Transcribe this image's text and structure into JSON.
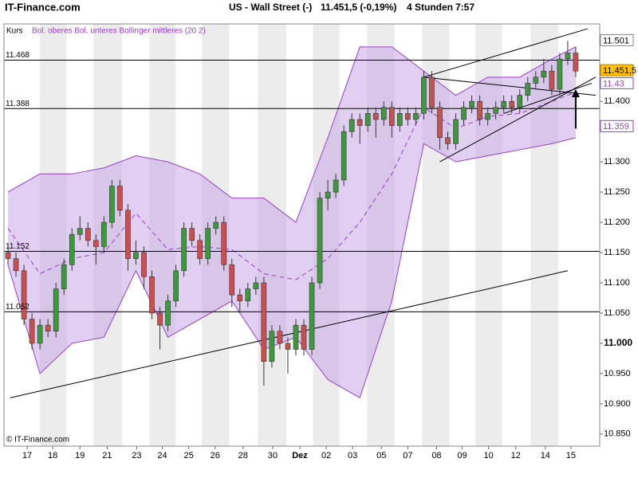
{
  "chart_data": {
    "type": "candlestick",
    "header": {
      "site": "IT-Finance.com",
      "instrument": "US - Wall Street (-)",
      "quote": "11.451,5 (-0,19%)",
      "interval": "4 Stunden",
      "time": "7:57"
    },
    "footer": "© IT-Finance.com",
    "legend": [
      "Kurs",
      "Bol. oberes Bol. unteres Bollinger mittleres (20 2)"
    ],
    "colors": {
      "up": "#3c9a3c",
      "down": "#c8504f",
      "band_fill": "#c9a8e8",
      "band_line": "#9a3fc8",
      "day_band": "#ececec"
    },
    "grid": true,
    "xlim": [
      -0.5,
      74
    ],
    "ylim": [
      10.83,
      11.528
    ],
    "xticks": [
      {
        "value": 2.4,
        "label": "17"
      },
      {
        "value": 5.6,
        "label": "18"
      },
      {
        "value": 9,
        "label": "19"
      },
      {
        "value": 12.4,
        "label": "21"
      },
      {
        "value": 16.1,
        "label": "23"
      },
      {
        "value": 19.3,
        "label": "24"
      },
      {
        "value": 22.6,
        "label": "25"
      },
      {
        "value": 25.9,
        "label": "26"
      },
      {
        "value": 29.4,
        "label": "28"
      },
      {
        "value": 33.1,
        "label": "30"
      },
      {
        "value": 36.5,
        "label": "Dez"
      },
      {
        "value": 39.8,
        "label": "02"
      },
      {
        "value": 43.1,
        "label": "03"
      },
      {
        "value": 46.7,
        "label": "05"
      },
      {
        "value": 50,
        "label": "07"
      },
      {
        "value": 53.6,
        "label": "08"
      },
      {
        "value": 56.8,
        "label": "09"
      },
      {
        "value": 60.1,
        "label": "10"
      },
      {
        "value": 63.5,
        "label": "12"
      },
      {
        "value": 67.2,
        "label": "14"
      },
      {
        "value": 70.4,
        "label": "15"
      }
    ],
    "yticks": [
      {
        "value": 10.85,
        "label": "10.850"
      },
      {
        "value": 10.9,
        "label": "10.900"
      },
      {
        "value": 10.95,
        "label": "10.950"
      },
      {
        "value": 11,
        "label": "11.000"
      },
      {
        "value": 11.05,
        "label": "11.050"
      },
      {
        "value": 11.1,
        "label": "11.100"
      },
      {
        "value": 11.15,
        "label": "11.150"
      },
      {
        "value": 11.2,
        "label": "11.200"
      },
      {
        "value": 11.25,
        "label": "11.250"
      },
      {
        "value": 11.3,
        "label": "11.300"
      },
      {
        "value": 11.4,
        "label": "11.400"
      }
    ],
    "series": [
      {
        "name": "Kurs",
        "open": [
          11.15,
          11.14,
          11.12,
          11.04,
          11.0,
          11.03,
          11.02,
          11.09,
          11.13,
          11.18,
          11.19,
          11.17,
          11.16,
          11.2,
          11.26,
          11.22,
          11.14,
          11.15,
          11.11,
          11.05,
          11.03,
          11.07,
          11.12,
          11.19,
          11.17,
          11.14,
          11.19,
          11.2,
          11.13,
          11.08,
          11.07,
          11.09,
          11.1,
          10.97,
          11.02,
          11.0,
          10.99,
          11.03,
          10.99,
          11.1,
          11.24,
          11.25,
          11.27,
          11.35,
          11.37,
          11.36,
          11.38,
          11.37,
          11.39,
          11.36,
          11.38,
          11.37,
          11.38,
          11.44,
          11.39,
          11.34,
          11.33,
          11.37,
          11.39,
          11.4,
          11.37,
          11.38,
          11.39,
          11.4,
          11.39,
          11.41,
          11.43,
          11.44,
          11.45,
          11.42,
          11.47,
          11.48
        ],
        "high": [
          11.16,
          11.15,
          11.13,
          11.05,
          11.04,
          11.04,
          11.1,
          11.14,
          11.19,
          11.21,
          11.2,
          11.18,
          11.21,
          11.27,
          11.27,
          11.23,
          11.17,
          11.16,
          11.12,
          11.06,
          11.08,
          11.13,
          11.2,
          11.2,
          11.18,
          11.2,
          11.21,
          11.21,
          11.14,
          11.09,
          11.1,
          11.11,
          11.11,
          11.03,
          11.03,
          11.01,
          11.04,
          11.04,
          11.11,
          11.25,
          11.27,
          11.28,
          11.36,
          11.38,
          11.38,
          11.39,
          11.39,
          11.4,
          11.4,
          11.39,
          11.39,
          11.39,
          11.45,
          11.45,
          11.4,
          11.35,
          11.38,
          11.4,
          11.41,
          11.41,
          11.39,
          11.4,
          11.41,
          11.41,
          11.42,
          11.44,
          11.45,
          11.47,
          11.46,
          11.48,
          11.5,
          11.49
        ],
        "low": [
          11.13,
          11.11,
          11.03,
          10.99,
          10.99,
          11.01,
          11.01,
          11.08,
          11.12,
          11.17,
          11.16,
          11.13,
          11.15,
          11.19,
          11.21,
          11.12,
          11.13,
          11.09,
          11.04,
          10.99,
          11.02,
          11.06,
          11.11,
          11.16,
          11.13,
          11.13,
          11.18,
          11.12,
          11.06,
          11.05,
          11.06,
          11.08,
          10.93,
          10.96,
          10.99,
          10.95,
          10.98,
          10.98,
          10.98,
          11.09,
          11.22,
          11.24,
          11.26,
          11.34,
          11.33,
          11.35,
          11.34,
          11.36,
          11.34,
          11.35,
          11.36,
          11.36,
          11.37,
          11.38,
          11.32,
          11.32,
          11.32,
          11.36,
          11.38,
          11.36,
          11.36,
          11.37,
          11.38,
          11.38,
          11.38,
          11.4,
          11.42,
          11.43,
          11.41,
          11.41,
          11.46,
          11.44
        ],
        "close": [
          11.14,
          11.12,
          11.04,
          11.0,
          11.03,
          11.02,
          11.09,
          11.13,
          11.18,
          11.19,
          11.17,
          11.16,
          11.2,
          11.26,
          11.22,
          11.14,
          11.15,
          11.11,
          11.05,
          11.03,
          11.07,
          11.12,
          11.19,
          11.17,
          11.14,
          11.19,
          11.2,
          11.13,
          11.08,
          11.07,
          11.09,
          11.1,
          10.97,
          11.02,
          11.0,
          10.99,
          11.03,
          10.99,
          11.1,
          11.24,
          11.25,
          11.27,
          11.35,
          11.37,
          11.36,
          11.38,
          11.37,
          11.39,
          11.36,
          11.38,
          11.37,
          11.38,
          11.44,
          11.39,
          11.34,
          11.33,
          11.37,
          11.39,
          11.4,
          11.37,
          11.38,
          11.39,
          11.4,
          11.39,
          11.41,
          11.43,
          11.44,
          11.45,
          11.42,
          11.47,
          11.48,
          11.45
        ]
      }
    ],
    "bands": {
      "x": [
        0,
        4,
        8,
        12,
        16,
        20,
        24,
        28,
        32,
        36,
        40,
        44,
        48,
        52,
        56,
        60,
        64,
        68,
        71
      ],
      "upper": [
        11.25,
        11.28,
        11.28,
        11.29,
        11.31,
        11.3,
        11.28,
        11.24,
        11.24,
        11.2,
        11.34,
        11.49,
        11.49,
        11.45,
        11.41,
        11.44,
        11.44,
        11.47,
        11.49
      ],
      "middle": [
        11.19,
        11.115,
        11.14,
        11.15,
        11.215,
        11.155,
        11.16,
        11.155,
        11.115,
        11.105,
        11.14,
        11.2,
        11.28,
        11.39,
        11.355,
        11.375,
        11.38,
        11.4,
        11.415
      ],
      "lower": [
        11.13,
        10.95,
        11.0,
        11.01,
        11.12,
        11.01,
        11.04,
        11.07,
        10.99,
        11.01,
        10.94,
        10.91,
        11.07,
        11.33,
        11.3,
        11.31,
        11.32,
        11.33,
        11.34
      ]
    },
    "levels": [
      11.468,
      11.388,
      11.152,
      11.052
    ],
    "trendlines": [
      {
        "x": [
          0.3,
          70
        ],
        "y": [
          10.91,
          11.12
        ]
      },
      {
        "x": [
          52,
          72.5
        ],
        "y": [
          11.44,
          11.52
        ]
      },
      {
        "x": [
          52,
          73.5
        ],
        "y": [
          11.44,
          11.41
        ]
      },
      {
        "x": [
          54,
          73.5
        ],
        "y": [
          11.3,
          11.44
        ]
      },
      {
        "x": [
          62,
          73
        ],
        "y": [
          11.38,
          11.43
        ]
      }
    ],
    "arrow": {
      "x": 71,
      "y": [
        11.355,
        11.42
      ]
    },
    "price_boxes": [
      {
        "value": 11.501,
        "kind": "high"
      },
      {
        "value": {
          "value": 11.4515,
          "label": "11.451,5"
        },
        "kind": "last"
      },
      {
        "value": 11.43,
        "kind": "band"
      },
      {
        "value": 11.359,
        "kind": "band"
      }
    ]
  }
}
